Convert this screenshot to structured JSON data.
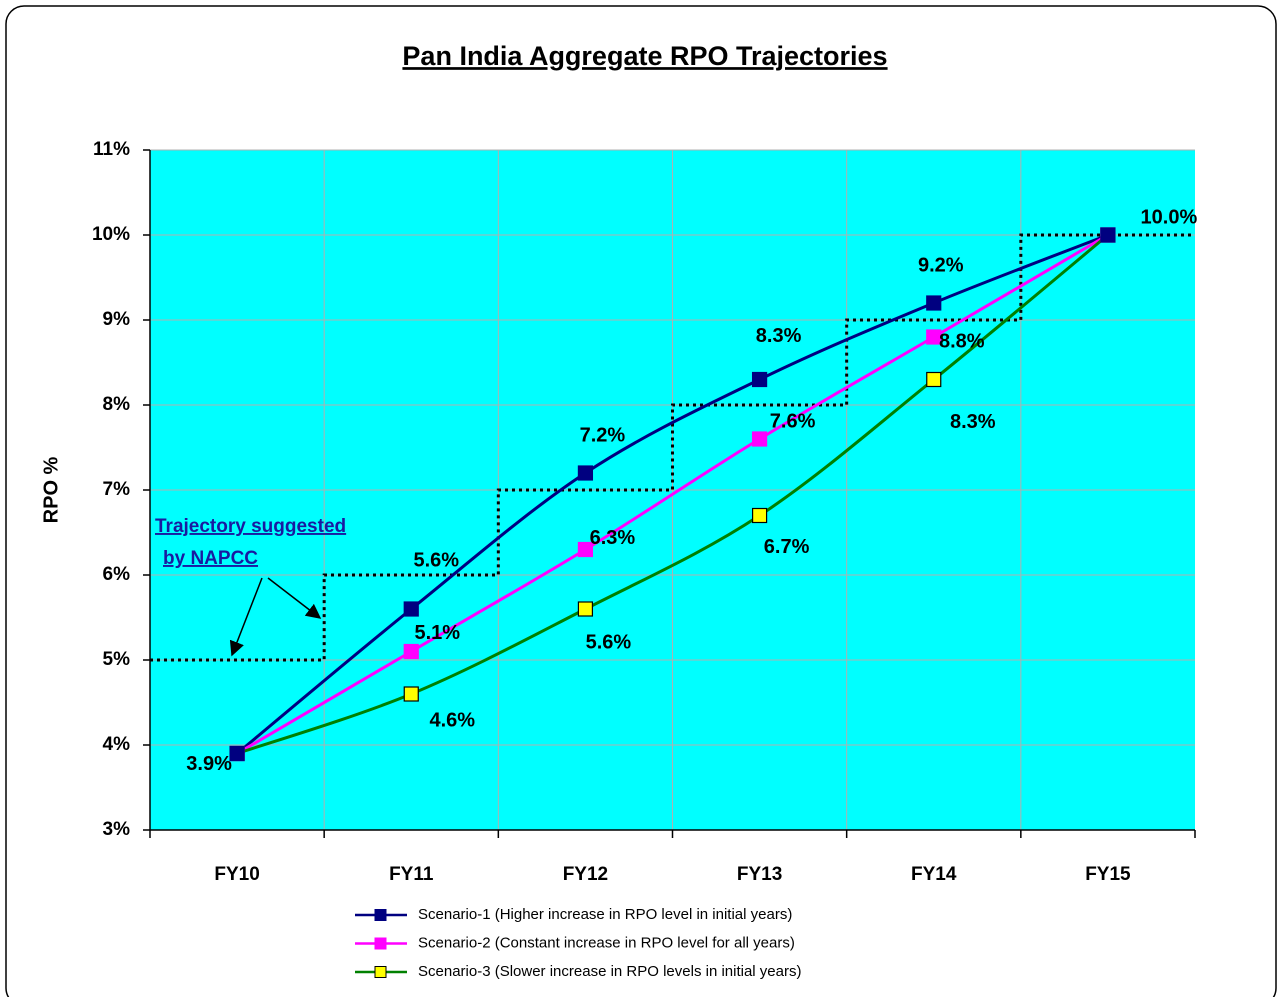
{
  "chart_data": {
    "type": "line",
    "title": "Pan India Aggregate RPO Trajectories",
    "y_label": "RPO %",
    "categories": [
      "FY10",
      "FY11",
      "FY12",
      "FY13",
      "FY14",
      "FY15"
    ],
    "ylim": [
      3,
      11
    ],
    "yticks": [
      {
        "value": 3,
        "label": "3%"
      },
      {
        "value": 4,
        "label": "4%"
      },
      {
        "value": 5,
        "label": "5%"
      },
      {
        "value": 6,
        "label": "6%"
      },
      {
        "value": 7,
        "label": "7%"
      },
      {
        "value": 8,
        "label": "8%"
      },
      {
        "value": 9,
        "label": "9%"
      },
      {
        "value": 10,
        "label": "10%"
      },
      {
        "value": 11,
        "label": "11%"
      }
    ],
    "grid": true,
    "background": "#00ffff",
    "legend": "bottom",
    "series": [
      {
        "name": "Scenario-1 (Higher increase in RPO level in initial years)",
        "color": "#000080",
        "marker_fill": "#000080",
        "values": [
          3.9,
          5.6,
          7.2,
          8.3,
          9.2,
          10.0
        ],
        "value_labels": [
          "3.9%",
          "5.6%",
          "7.2%",
          "8.3%",
          "9.2%",
          "10.0%"
        ]
      },
      {
        "name": "Scenario-2 (Constant increase in RPO level for all years)",
        "color": "#ff00ff",
        "marker_fill": "#ff00ff",
        "values": [
          3.9,
          5.1,
          6.3,
          7.6,
          8.8,
          10.0
        ],
        "value_labels": [
          null,
          "5.1%",
          "6.3%",
          "7.6%",
          "8.8%",
          null
        ]
      },
      {
        "name": "Scenario-3 (Slower increase in RPO levels in initial years)",
        "color": "#008000",
        "marker_fill": "#ffff00",
        "values": [
          3.9,
          4.6,
          5.6,
          6.7,
          8.3,
          10.0
        ],
        "value_labels": [
          null,
          "4.6%",
          "5.6%",
          "6.7%",
          "8.3%",
          null
        ]
      }
    ],
    "napcc": {
      "annotation": [
        "Trajectory suggested",
        "by NAPCC"
      ],
      "color": "#000000",
      "values": [
        5,
        6,
        7,
        8,
        9,
        10
      ]
    }
  }
}
